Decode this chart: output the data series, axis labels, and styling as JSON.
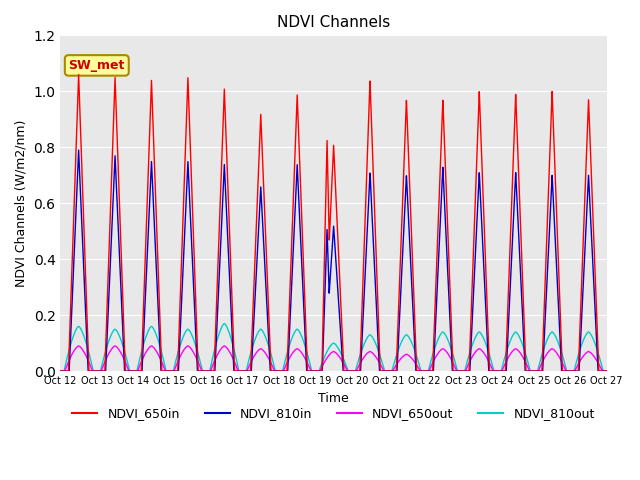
{
  "title": "NDVI Channels",
  "xlabel": "Time",
  "ylabel": "NDVI Channels (W/m2/nm)",
  "ylim": [
    0,
    1.2
  ],
  "background_color": "#e8e8e8",
  "annotation_text": "SW_met",
  "annotation_bg": "#ffff99",
  "annotation_border": "#aa8800",
  "tick_labels": [
    "Oct 12",
    "Oct 13",
    "Oct 14",
    "Oct 15",
    "Oct 16",
    "Oct 17",
    "Oct 18",
    "Oct 19",
    "Oct 20",
    "Oct 21",
    "Oct 22",
    "Oct 23",
    "Oct 24",
    "Oct 25",
    "Oct 26",
    "Oct 27"
  ],
  "series": {
    "NDVI_650in": {
      "color": "#ff0000",
      "lw": 1.0
    },
    "NDVI_810in": {
      "color": "#0000cc",
      "lw": 1.0
    },
    "NDVI_650out": {
      "color": "#ff00ff",
      "lw": 1.0
    },
    "NDVI_810out": {
      "color": "#00cccc",
      "lw": 1.0
    }
  },
  "n_days": 15,
  "peaks_650in": [
    1.06,
    1.05,
    1.04,
    1.05,
    1.01,
    0.92,
    0.99,
    0.81,
    1.04,
    0.97,
    0.97,
    1.0,
    0.99,
    1.0,
    0.97
  ],
  "peaks_810in": [
    0.79,
    0.77,
    0.75,
    0.75,
    0.74,
    0.66,
    0.74,
    0.52,
    0.71,
    0.7,
    0.73,
    0.71,
    0.71,
    0.7,
    0.7
  ],
  "peaks_650out": [
    0.09,
    0.09,
    0.09,
    0.09,
    0.09,
    0.08,
    0.08,
    0.07,
    0.07,
    0.06,
    0.08,
    0.08,
    0.08,
    0.08,
    0.07
  ],
  "peaks_810out": [
    0.16,
    0.15,
    0.16,
    0.15,
    0.17,
    0.15,
    0.15,
    0.1,
    0.13,
    0.13,
    0.14,
    0.14,
    0.14,
    0.14,
    0.14
  ],
  "secondary_650in": [
    0.0,
    0.0,
    0.0,
    0.0,
    0.0,
    0.0,
    0.0,
    0.83,
    0.0,
    0.0,
    0.0,
    0.0,
    0.0,
    0.0,
    0.0
  ],
  "secondary_810in": [
    0.0,
    0.0,
    0.0,
    0.0,
    0.0,
    0.0,
    0.0,
    0.51,
    0.0,
    0.0,
    0.0,
    0.0,
    0.0,
    0.0,
    0.0
  ]
}
